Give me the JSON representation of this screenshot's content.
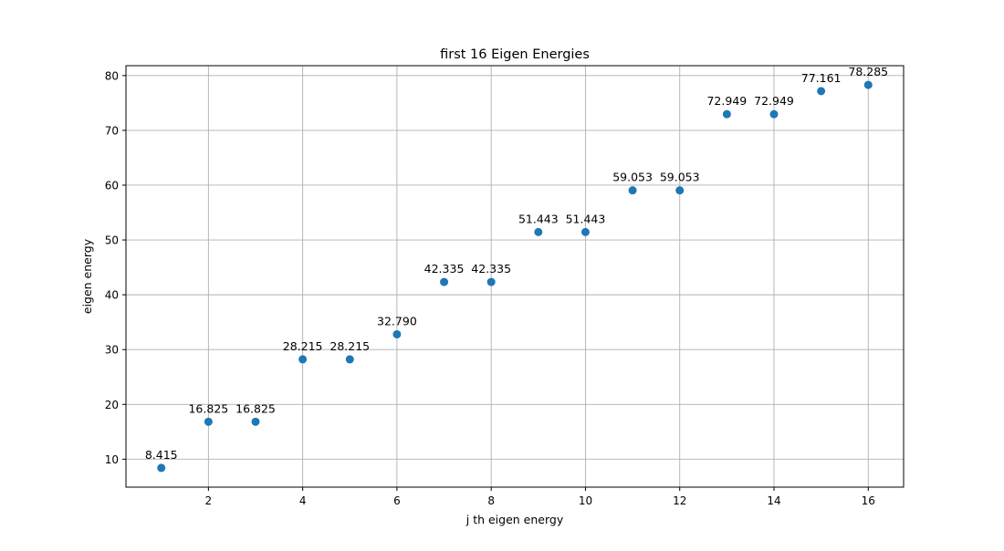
{
  "chart_data": {
    "type": "scatter",
    "title": "first 16 Eigen Energies",
    "xlabel": "j th eigen energy",
    "ylabel": "eigen energy",
    "x": [
      1,
      2,
      3,
      4,
      5,
      6,
      7,
      8,
      9,
      10,
      11,
      12,
      13,
      14,
      15,
      16
    ],
    "y": [
      8.415,
      16.825,
      16.825,
      28.215,
      28.215,
      32.79,
      42.335,
      42.335,
      51.443,
      51.443,
      59.053,
      59.053,
      72.949,
      72.949,
      77.161,
      78.285
    ],
    "point_labels": [
      "8.415",
      "16.825",
      "16.825",
      "28.215",
      "28.215",
      "32.790",
      "42.335",
      "42.335",
      "51.443",
      "51.443",
      "59.053",
      "59.053",
      "72.949",
      "72.949",
      "77.161",
      "78.285"
    ],
    "xlim": [
      0.25,
      16.75
    ],
    "ylim": [
      4.9,
      81.8
    ],
    "xticks": [
      2,
      4,
      6,
      8,
      10,
      12,
      14,
      16
    ],
    "yticks": [
      10,
      20,
      30,
      40,
      50,
      60,
      70,
      80
    ],
    "grid": true,
    "marker_color": "#1f77b4",
    "grid_color": "#b0b0b0",
    "axis_color": "#000000"
  }
}
